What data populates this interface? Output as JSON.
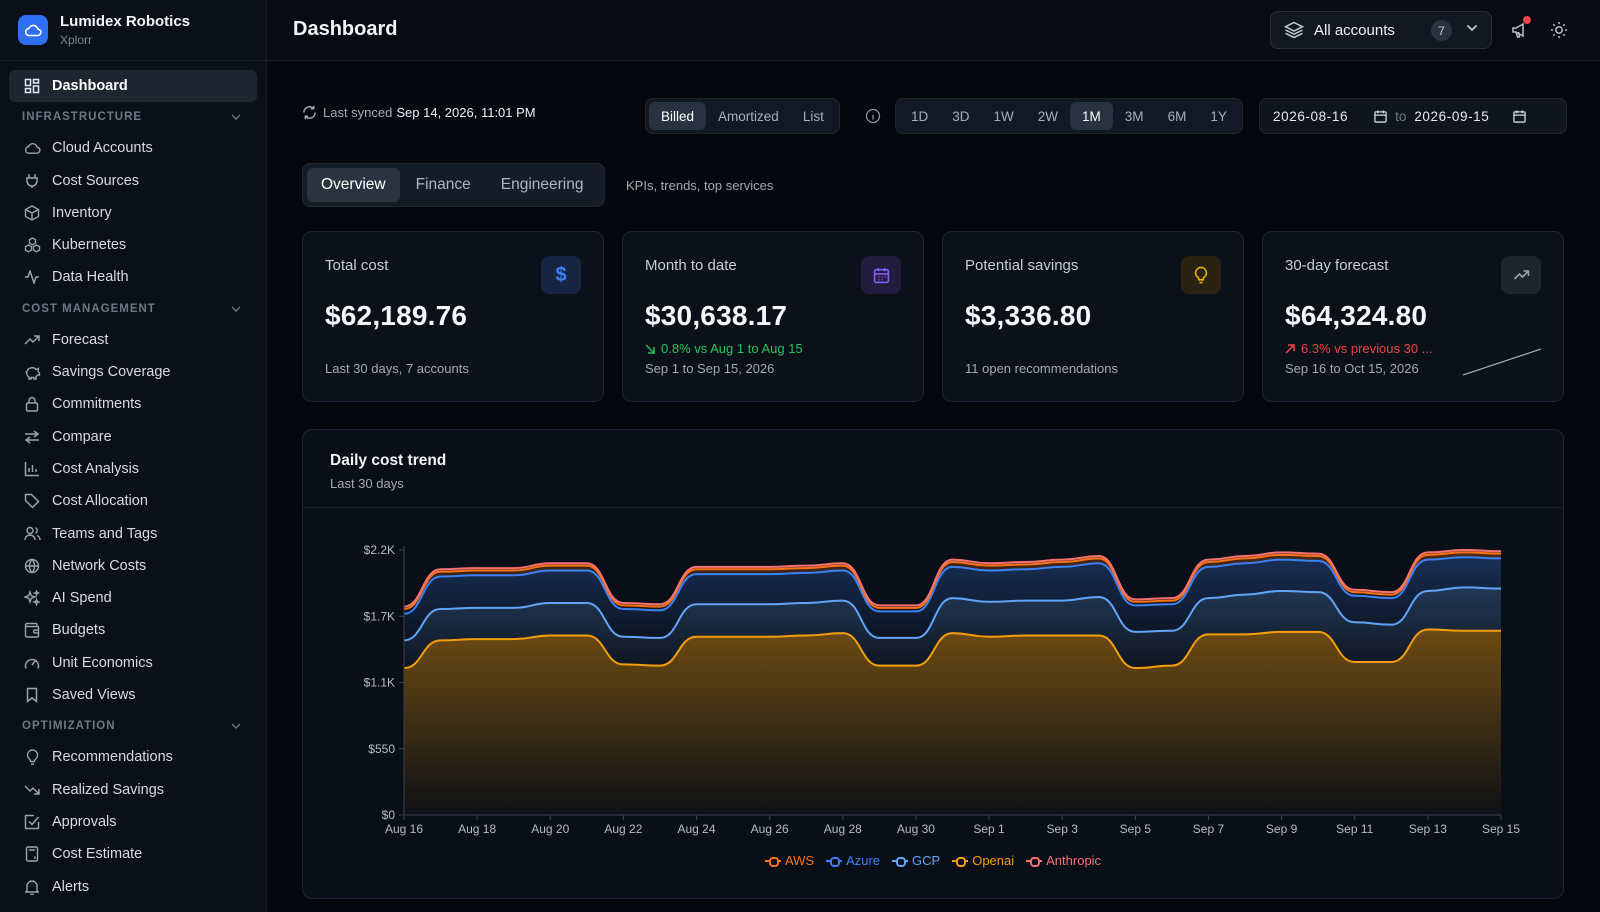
{
  "brand": {
    "name": "Lumidex Robotics",
    "sub": "Xplorr"
  },
  "sidebar": {
    "dashboard": "Dashboard",
    "sections": [
      {
        "title": "INFRASTRUCTURE",
        "items": [
          "Cloud Accounts",
          "Cost Sources",
          "Inventory",
          "Kubernetes",
          "Data Health"
        ]
      },
      {
        "title": "COST MANAGEMENT",
        "items": [
          "Forecast",
          "Savings Coverage",
          "Commitments",
          "Compare",
          "Cost Analysis",
          "Cost Allocation",
          "Teams and Tags",
          "Network Costs",
          "AI Spend",
          "Budgets",
          "Unit Economics",
          "Saved Views"
        ]
      },
      {
        "title": "OPTIMIZATION",
        "items": [
          "Recommendations",
          "Realized Savings",
          "Approvals",
          "Cost Estimate",
          "Alerts"
        ]
      }
    ]
  },
  "header": {
    "title": "Dashboard",
    "accounts_label": "All accounts",
    "accounts_count": "7"
  },
  "toolbar": {
    "sync_label": "Last synced",
    "sync_time": "Sep 14, 2026, 11:01 PM",
    "cost_modes": [
      "Billed",
      "Amortized",
      "List"
    ],
    "ranges": [
      "1D",
      "3D",
      "1W",
      "2W",
      "1M",
      "3M",
      "6M",
      "1Y"
    ],
    "date_from": "2026-08-16",
    "date_to_label": "to",
    "date_to": "2026-09-15"
  },
  "tabs": {
    "items": [
      "Overview",
      "Finance",
      "Engineering"
    ],
    "hint": "KPIs, trends, top services"
  },
  "kpis": [
    {
      "title": "Total cost",
      "value": "$62,189.76",
      "delta": "",
      "foot": "Last 30 days, 7 accounts",
      "icon": "dollar-icon",
      "accent": "#3b82f6"
    },
    {
      "title": "Month to date",
      "value": "$30,638.17",
      "delta": "0.8% vs Aug 1 to Aug 15",
      "delta_color": "#22c55e",
      "foot": "Sep 1 to Sep 15, 2026",
      "icon": "calendar-icon",
      "accent": "#8b5cf6"
    },
    {
      "title": "Potential savings",
      "value": "$3,336.80",
      "delta": "",
      "foot": "11 open recommendations",
      "icon": "lightbulb-icon",
      "accent": "#eab308"
    },
    {
      "title": "30-day forecast",
      "value": "$64,324.80",
      "delta": "6.3% vs previous 30 ...",
      "delta_color": "#ef4444",
      "foot": "Sep 16 to Oct 15, 2026",
      "icon": "trend-up-icon",
      "accent": "#9ca3af"
    }
  ],
  "chart": {
    "title": "Daily cost trend",
    "subtitle": "Last 30 days"
  },
  "chart_data": {
    "type": "area",
    "stacked": true,
    "x": [
      "Aug 16",
      "Aug 17",
      "Aug 18",
      "Aug 19",
      "Aug 20",
      "Aug 21",
      "Aug 22",
      "Aug 23",
      "Aug 24",
      "Aug 25",
      "Aug 26",
      "Aug 27",
      "Aug 28",
      "Aug 29",
      "Aug 30",
      "Aug 31",
      "Sep 1",
      "Sep 2",
      "Sep 3",
      "Sep 4",
      "Sep 5",
      "Sep 6",
      "Sep 7",
      "Sep 8",
      "Sep 9",
      "Sep 10",
      "Sep 11",
      "Sep 12",
      "Sep 13",
      "Sep 14",
      "Sep 15"
    ],
    "x_tick_labels": [
      "Aug 16",
      "Aug 18",
      "Aug 20",
      "Aug 22",
      "Aug 24",
      "Aug 26",
      "Aug 28",
      "Aug 30",
      "Sep 1",
      "Sep 3",
      "Sep 5",
      "Sep 7",
      "Sep 9",
      "Sep 11",
      "Sep 13",
      "Sep 15"
    ],
    "y_tick_labels": [
      "$0",
      "$550",
      "$1.1K",
      "$1.7K",
      "$2.2K"
    ],
    "ylim": [
      0,
      2200
    ],
    "series": [
      {
        "name": "Openai",
        "color": "#f59e0b",
        "values": [
          1220,
          1450,
          1460,
          1460,
          1490,
          1490,
          1250,
          1240,
          1480,
          1480,
          1480,
          1490,
          1510,
          1240,
          1240,
          1510,
          1480,
          1490,
          1490,
          1490,
          1220,
          1240,
          1500,
          1500,
          1520,
          1520,
          1270,
          1270,
          1540,
          1530,
          1530
        ]
      },
      {
        "name": "GCP",
        "color": "#60a5fa",
        "values": [
          230,
          260,
          260,
          260,
          270,
          270,
          230,
          230,
          270,
          270,
          270,
          270,
          270,
          230,
          230,
          290,
          290,
          290,
          290,
          320,
          300,
          290,
          300,
          330,
          340,
          330,
          330,
          310,
          320,
          360,
          350
        ]
      },
      {
        "name": "Azure",
        "color": "#3b82f6",
        "values": [
          220,
          270,
          270,
          270,
          270,
          270,
          230,
          230,
          250,
          250,
          250,
          250,
          250,
          220,
          220,
          260,
          260,
          260,
          280,
          280,
          220,
          220,
          260,
          260,
          260,
          260,
          220,
          220,
          260,
          250,
          250
        ]
      },
      {
        "name": "AWS",
        "color": "#f97316",
        "values": [
          40,
          40,
          40,
          40,
          40,
          40,
          30,
          30,
          40,
          40,
          40,
          40,
          40,
          30,
          30,
          40,
          40,
          40,
          40,
          40,
          30,
          30,
          40,
          40,
          40,
          40,
          30,
          30,
          40,
          40,
          40
        ]
      },
      {
        "name": "Anthropic",
        "color": "#f87171",
        "values": [
          20,
          20,
          20,
          20,
          20,
          20,
          20,
          20,
          20,
          20,
          20,
          20,
          20,
          20,
          20,
          20,
          20,
          20,
          20,
          20,
          20,
          20,
          20,
          20,
          20,
          20,
          20,
          20,
          20,
          20,
          20
        ]
      }
    ],
    "legend_order": [
      "AWS",
      "Azure",
      "GCP",
      "Openai",
      "Anthropic"
    ],
    "legend_colors": [
      "#f97316",
      "#3b82f6",
      "#60a5fa",
      "#f59e0b",
      "#f87171"
    ],
    "legend_placement": "bottom-center",
    "grid": false
  }
}
